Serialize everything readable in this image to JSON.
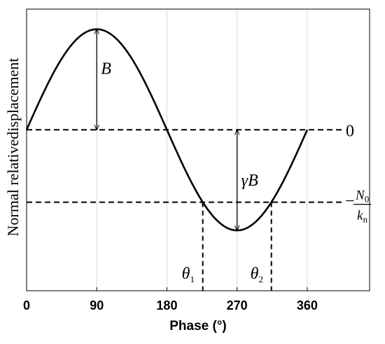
{
  "chart_data": {
    "type": "line",
    "title": "",
    "xlabel": "Phase (°)",
    "ylabel": "Normal relativedisplacement",
    "xlim": [
      0,
      440
    ],
    "ylim": [
      -1.6,
      1.2
    ],
    "xticks": [
      "0",
      "90",
      "180",
      "270",
      "360"
    ],
    "xtick_values": [
      0,
      90,
      180,
      270,
      360
    ],
    "grid": {
      "x": true,
      "y": false
    },
    "series": [
      {
        "style": "solid",
        "x": [
          0,
          30,
          60,
          90,
          120,
          150,
          180,
          210,
          240,
          270,
          300,
          330,
          360
        ],
        "y": [
          0,
          0.5,
          0.866,
          1,
          0.866,
          0.5,
          0,
          -0.5,
          -0.866,
          -1,
          -0.866,
          -0.5,
          0
        ]
      }
    ],
    "reference_lines": [
      {
        "style": "dashed",
        "y": 0,
        "label": "0"
      },
      {
        "style": "dashed",
        "y": -0.72,
        "label_num": "N",
        "label_num_sub": "0",
        "label_den": "k",
        "label_den_sub": "n",
        "label_sign": "−"
      }
    ],
    "vertical_markers": [
      {
        "x": 226,
        "label": "θ",
        "label_sub": "1"
      },
      {
        "x": 314,
        "label": "θ",
        "label_sub": "2"
      }
    ],
    "annotations": [
      {
        "label": "B",
        "x": 90,
        "y_from": 0,
        "y_to": 1
      },
      {
        "label": "γB",
        "x": 270,
        "y_from": 0,
        "y_to": -1
      }
    ]
  }
}
